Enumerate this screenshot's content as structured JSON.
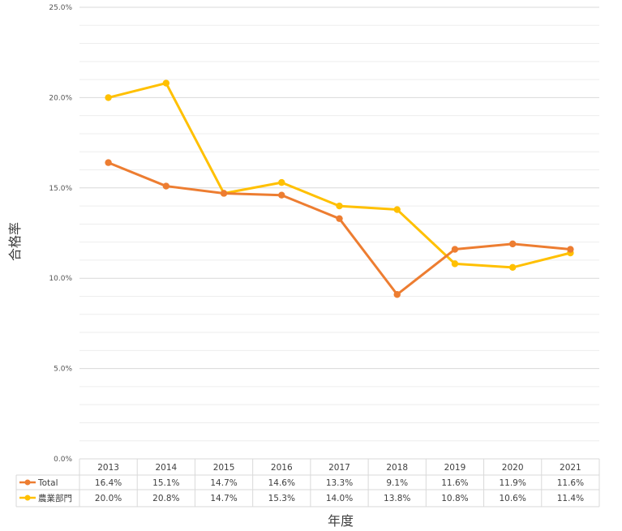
{
  "chart_data": {
    "type": "line",
    "title": "",
    "xlabel": "年度",
    "ylabel": "合格率",
    "ylim": [
      0,
      25
    ],
    "y_ticks": [
      "0.0%",
      "5.0%",
      "10.0%",
      "15.0%",
      "20.0%",
      "25.0%"
    ],
    "grid": true,
    "legend": "data-table-below",
    "categories": [
      "2013",
      "2014",
      "2015",
      "2016",
      "2017",
      "2018",
      "2019",
      "2020",
      "2021"
    ],
    "series": [
      {
        "name": "Total",
        "color": "#ED7D31",
        "values": [
          16.4,
          15.1,
          14.7,
          14.6,
          13.3,
          9.1,
          11.6,
          11.9,
          11.6
        ],
        "labels": [
          "16.4%",
          "15.1%",
          "14.7%",
          "14.6%",
          "13.3%",
          "9.1%",
          "11.6%",
          "11.9%",
          "11.6%"
        ]
      },
      {
        "name": "農業部門",
        "color": "#FFC000",
        "values": [
          20.0,
          20.8,
          14.7,
          15.3,
          14.0,
          13.8,
          10.8,
          10.6,
          11.4
        ],
        "labels": [
          "20.0%",
          "20.8%",
          "14.7%",
          "15.3%",
          "14.0%",
          "13.8%",
          "10.8%",
          "10.6%",
          "11.4%"
        ]
      }
    ]
  }
}
